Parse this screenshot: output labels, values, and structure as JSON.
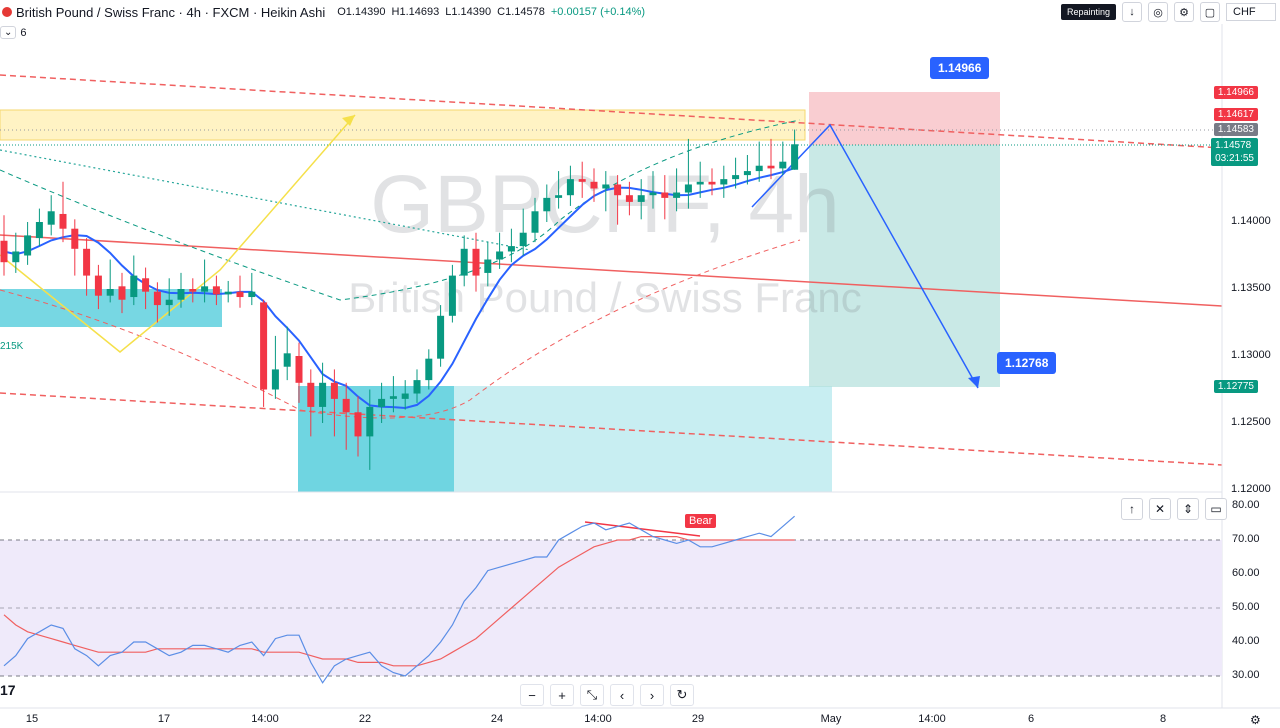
{
  "header": {
    "title": "British Pound / Swiss Franc · 4h · FXCM · Heikin Ashi",
    "open": "O1.14390",
    "high": "H1.14693",
    "low": "L1.14390",
    "close": "C1.14578",
    "change": "+0.00157 (+0.14%)",
    "indicator_count": "6"
  },
  "toolbar": {
    "repainting_label": "Repainting",
    "currency": "CHF"
  },
  "watermark": {
    "symbol": "GBPCHF, 4h",
    "name": "British Pound / Swiss Franc"
  },
  "price_labels": {
    "target_high": "1.14966",
    "level_1": "1.14617",
    "level_2": "1.14583",
    "current": "1.14578",
    "countdown": "03:21:55",
    "target_low": "1.12775"
  },
  "callouts": {
    "upper": "1.14966",
    "lower": "1.12768"
  },
  "volume_label": "215K",
  "bear_label": "Bear",
  "bottom_left_logo": "17",
  "colors": {
    "bull": "#089981",
    "bear": "#f23645",
    "accent": "#2962ff",
    "zone_yellow": "#fff3c4",
    "zone_cyan": "#5fd0de",
    "tp_green": "#b2dfdb",
    "sl_red": "#f8c8cc",
    "rsi_line": "#5b8ee6",
    "rsi_ma": "#f06060"
  },
  "icons": {
    "down": "arrow-down-icon",
    "eye": "eye-off-icon",
    "settings": "gear-icon",
    "more": "more-icon"
  },
  "chart_data": {
    "type": "candlestick",
    "y_axis_labels": [
      "1.14000",
      "1.13500",
      "1.13000",
      "1.12500",
      "1.12000"
    ],
    "x_axis_labels": [
      "15",
      "17",
      "14:00",
      "22",
      "24",
      "14:00",
      "29",
      "May",
      "14:00",
      "6",
      "8"
    ],
    "rsi_axis_labels": [
      "80.00",
      "70.00",
      "60.00",
      "50.00",
      "40.00",
      "30.00"
    ],
    "rsi_range": [
      30,
      80
    ],
    "rsi_upper": 70,
    "rsi_mid": 50,
    "rsi_lower": 30,
    "candles": [
      [
        1.1386,
        1.137,
        1.1405,
        1.136
      ],
      [
        1.137,
        1.1378,
        1.1392,
        1.1362
      ],
      [
        1.1375,
        1.139,
        1.14,
        1.1368
      ],
      [
        1.1388,
        1.14,
        1.141,
        1.1382
      ],
      [
        1.1398,
        1.1408,
        1.142,
        1.139
      ],
      [
        1.1406,
        1.1395,
        1.143,
        1.1385
      ],
      [
        1.1395,
        1.138,
        1.1402,
        1.136
      ],
      [
        1.138,
        1.136,
        1.1388,
        1.1345
      ],
      [
        1.136,
        1.1345,
        1.1368,
        1.1335
      ],
      [
        1.1345,
        1.135,
        1.1372,
        1.134
      ],
      [
        1.1352,
        1.1342,
        1.1362,
        1.1332
      ],
      [
        1.1344,
        1.136,
        1.1375,
        1.1338
      ],
      [
        1.1358,
        1.1348,
        1.1366,
        1.1335
      ],
      [
        1.1348,
        1.1338,
        1.1355,
        1.1325
      ],
      [
        1.1338,
        1.1342,
        1.1358,
        1.133
      ],
      [
        1.1342,
        1.135,
        1.1362,
        1.1336
      ],
      [
        1.135,
        1.1348,
        1.1358,
        1.134
      ],
      [
        1.1348,
        1.1352,
        1.1372,
        1.134
      ],
      [
        1.1352,
        1.1346,
        1.136,
        1.1338
      ],
      [
        1.1346,
        1.1348,
        1.1356,
        1.134
      ],
      [
        1.1348,
        1.1344,
        1.136,
        1.1336
      ],
      [
        1.1344,
        1.1348,
        1.1362,
        1.1338
      ],
      [
        1.134,
        1.1275,
        1.1342,
        1.1262
      ],
      [
        1.1275,
        1.129,
        1.1315,
        1.1268
      ],
      [
        1.1292,
        1.1302,
        1.1322,
        1.1282
      ],
      [
        1.13,
        1.128,
        1.131,
        1.1265
      ],
      [
        1.128,
        1.1262,
        1.129,
        1.124
      ],
      [
        1.1262,
        1.128,
        1.1295,
        1.125
      ],
      [
        1.128,
        1.1268,
        1.129,
        1.124
      ],
      [
        1.1268,
        1.1258,
        1.128,
        1.123
      ],
      [
        1.1258,
        1.124,
        1.127,
        1.1225
      ],
      [
        1.124,
        1.1262,
        1.1275,
        1.1215
      ],
      [
        1.1262,
        1.1268,
        1.128,
        1.125
      ],
      [
        1.1268,
        1.127,
        1.1285,
        1.1258
      ],
      [
        1.1268,
        1.1272,
        1.1282,
        1.126
      ],
      [
        1.1272,
        1.1282,
        1.129,
        1.1265
      ],
      [
        1.1282,
        1.1298,
        1.1305,
        1.1275
      ],
      [
        1.1298,
        1.133,
        1.1338,
        1.1292
      ],
      [
        1.133,
        1.136,
        1.1368,
        1.1325
      ],
      [
        1.136,
        1.138,
        1.139,
        1.1352
      ],
      [
        1.138,
        1.136,
        1.1392,
        1.1348
      ],
      [
        1.1362,
        1.1372,
        1.1385,
        1.1352
      ],
      [
        1.1372,
        1.1378,
        1.1392,
        1.1365
      ],
      [
        1.1378,
        1.1382,
        1.1395,
        1.137
      ],
      [
        1.1382,
        1.1392,
        1.141,
        1.1375
      ],
      [
        1.1392,
        1.1408,
        1.1418,
        1.1385
      ],
      [
        1.1408,
        1.1418,
        1.1428,
        1.14
      ],
      [
        1.1418,
        1.142,
        1.1438,
        1.141
      ],
      [
        1.142,
        1.1432,
        1.1442,
        1.1412
      ],
      [
        1.1432,
        1.143,
        1.1445,
        1.1418
      ],
      [
        1.143,
        1.1425,
        1.144,
        1.1415
      ],
      [
        1.1425,
        1.1428,
        1.1438,
        1.1408
      ],
      [
        1.1428,
        1.142,
        1.1435,
        1.1398
      ],
      [
        1.142,
        1.1415,
        1.143,
        1.1405
      ],
      [
        1.1415,
        1.142,
        1.1432,
        1.1402
      ],
      [
        1.142,
        1.1422,
        1.1438,
        1.141
      ],
      [
        1.1422,
        1.1418,
        1.1435,
        1.1402
      ],
      [
        1.1418,
        1.1422,
        1.144,
        1.1408
      ],
      [
        1.1422,
        1.1428,
        1.1462,
        1.141
      ],
      [
        1.1428,
        1.143,
        1.1445,
        1.1418
      ],
      [
        1.143,
        1.1428,
        1.144,
        1.142
      ],
      [
        1.1428,
        1.1432,
        1.1442,
        1.1418
      ],
      [
        1.1432,
        1.1435,
        1.1448,
        1.1425
      ],
      [
        1.1435,
        1.1438,
        1.145,
        1.1428
      ],
      [
        1.1438,
        1.1442,
        1.146,
        1.143
      ],
      [
        1.1442,
        1.144,
        1.1462,
        1.1432
      ],
      [
        1.144,
        1.1445,
        1.146,
        1.1435
      ],
      [
        1.1439,
        1.1458,
        1.1469,
        1.1439
      ]
    ],
    "rsi": [
      33,
      36,
      41,
      43,
      45,
      44,
      38,
      36,
      33,
      36,
      37,
      40,
      40,
      38,
      36,
      37,
      39,
      39,
      38,
      37,
      39,
      40,
      36,
      41,
      42,
      42,
      34,
      28,
      33,
      35,
      36,
      37,
      33,
      31,
      30,
      33,
      36,
      40,
      45,
      52,
      56,
      61,
      62,
      63,
      64,
      65,
      65,
      70,
      72,
      74,
      75,
      73,
      74,
      75,
      73,
      71,
      70,
      69,
      70,
      68,
      68,
      69,
      70,
      71,
      72,
      71,
      74,
      77
    ],
    "rsi_ma": [
      48,
      45,
      43,
      42,
      41,
      40,
      39,
      38,
      37,
      37,
      37,
      37,
      37,
      38,
      38,
      38,
      38,
      38,
      38,
      38,
      38,
      38,
      37,
      37,
      37,
      37,
      36,
      35,
      35,
      35,
      34,
      34,
      34,
      33,
      33,
      33,
      34,
      35,
      37,
      39,
      41,
      44,
      47,
      50,
      53,
      56,
      59,
      62,
      64,
      66,
      68,
      69,
      70,
      70,
      71,
      71,
      71,
      71,
      70,
      70,
      70,
      70,
      70,
      70,
      70,
      70,
      70,
      70
    ]
  }
}
